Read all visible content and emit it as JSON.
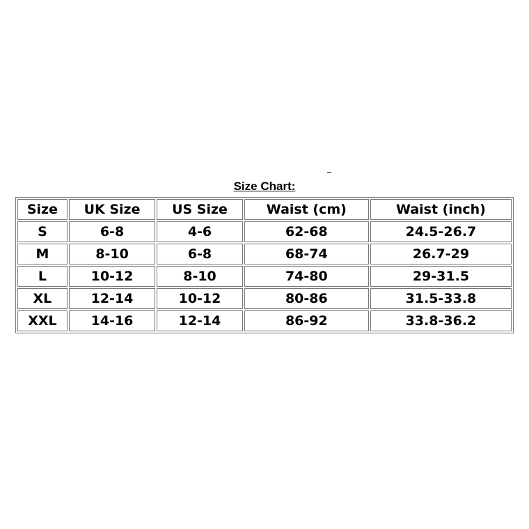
{
  "title": "Size Chart:",
  "headers": [
    "Size",
    "UK Size",
    "US Size",
    "Waist (cm)",
    "Waist (inch)"
  ],
  "rows": [
    [
      "S",
      "6-8",
      "4-6",
      "62-68",
      "24.5-26.7"
    ],
    [
      "M",
      "8-10",
      "6-8",
      "68-74",
      "26.7-29"
    ],
    [
      "L",
      "10-12",
      "8-10",
      "74-80",
      "29-31.5"
    ],
    [
      "XL",
      "12-14",
      "10-12",
      "80-86",
      "31.5-33.8"
    ],
    [
      "XXL",
      "14-16",
      "12-14",
      "86-92",
      "33.8-36.2"
    ]
  ]
}
